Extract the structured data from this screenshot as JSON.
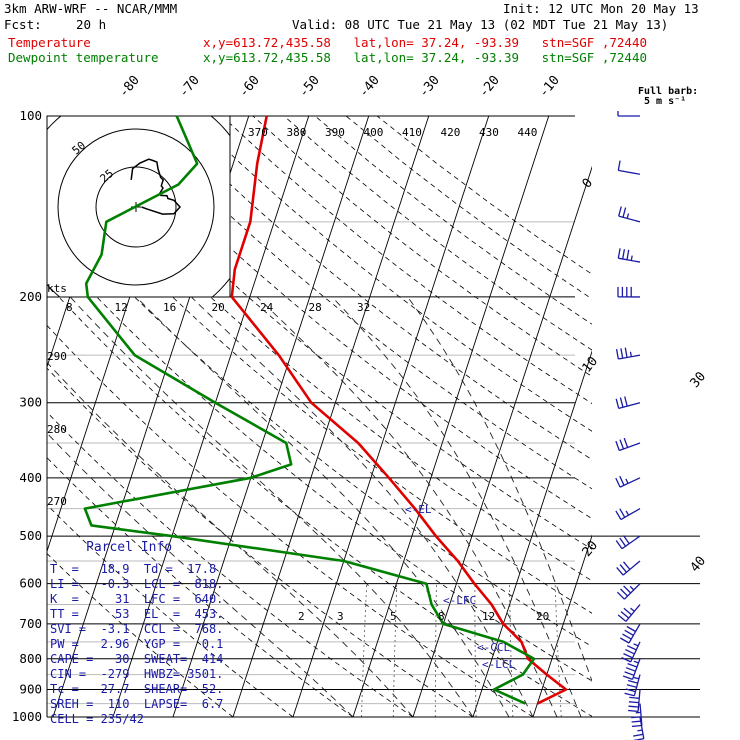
{
  "header": {
    "model": "3km ARW-WRF -- NCAR/MMM",
    "init": "Init: 12 UTC Mon 20 May 13",
    "fcst_label": "Fcst:",
    "fcst_value": "20 h",
    "valid": "Valid: 08 UTC Tue 21 May 13 (02 MDT Tue 21 May 13)"
  },
  "legend": [
    {
      "name": "Temperature",
      "info": "x,y=613.72,435.58   lat,lon= 37.24, -93.39   stn=SGF ,72440",
      "color": "#e00000"
    },
    {
      "name": "Dewpoint temperature",
      "info": "x,y=613.72,435.58   lat,lon= 37.24, -93.39   stn=SGF ,72440",
      "color": "#008000"
    }
  ],
  "wind_barb_label": [
    "Full barb:",
    "5 m s⁻¹"
  ],
  "hodograph": {
    "units": "kts",
    "ring_labels": [
      "50",
      "25"
    ],
    "theta_labels": [
      "370",
      "380",
      "390",
      "400",
      "410",
      "420",
      "430",
      "440"
    ],
    "x_ticks": [
      "8",
      "12",
      "16",
      "20",
      "24",
      "28",
      "32"
    ]
  },
  "theta_left_labels": [
    "290",
    "280",
    "270"
  ],
  "mixing_ratio_labels": [
    "2",
    "3",
    "5",
    "8",
    "12",
    "20"
  ],
  "parcel_markers": [
    "EL",
    "LFC",
    "CCL",
    "LCL"
  ],
  "parcel_info": {
    "title": "Parcel Info",
    "rows": [
      "T  =   18.9  Td =  17.8",
      "LI =   -0.3  LCL =  818.",
      "K  =     31  LFC =  640.",
      "TT =     53  EL  =  453.",
      "SVI =  -3.1  CCL =  768.",
      "PW =   2.96  YGP =   0.1",
      "CAPE =   30  SWEAT=  414",
      "CIN =  -279  HWBZ= 3501.",
      "Tc =   27.7  SHEAR=  52.",
      "SREH =  110  LAPSE=  6.7",
      "CELL = 235/42"
    ]
  },
  "chart_data": {
    "type": "line",
    "title": "",
    "ylabel": "",
    "xlabel": "",
    "y_scale": "log-pressure",
    "pressure_ticks": [
      100,
      200,
      300,
      400,
      500,
      600,
      700,
      800,
      900,
      1000
    ],
    "isotherm_labels": [
      -80,
      -70,
      -60,
      -50,
      -40,
      -30,
      -20,
      -10,
      0,
      10,
      20,
      30,
      40
    ],
    "series": [
      {
        "name": "Temperature",
        "color": "#e00000",
        "points": [
          [
            100,
            -57
          ],
          [
            120,
            -56
          ],
          [
            150,
            -54
          ],
          [
            180,
            -54
          ],
          [
            200,
            -53
          ],
          [
            250,
            -42
          ],
          [
            300,
            -34
          ],
          [
            350,
            -24
          ],
          [
            400,
            -17
          ],
          [
            450,
            -11
          ],
          [
            500,
            -6
          ],
          [
            550,
            -1
          ],
          [
            600,
            3
          ],
          [
            650,
            7
          ],
          [
            700,
            10
          ],
          [
            750,
            14
          ],
          [
            800,
            16
          ],
          [
            850,
            20
          ],
          [
            900,
            24
          ],
          [
            950,
            20
          ]
        ]
      },
      {
        "name": "Dewpoint temperature",
        "color": "#008000",
        "points": [
          [
            100,
            -72
          ],
          [
            120,
            -66
          ],
          [
            130,
            -68
          ],
          [
            150,
            -78
          ],
          [
            170,
            -77
          ],
          [
            190,
            -78
          ],
          [
            200,
            -77
          ],
          [
            250,
            -66
          ],
          [
            300,
            -50
          ],
          [
            350,
            -36
          ],
          [
            380,
            -34
          ],
          [
            400,
            -40
          ],
          [
            450,
            -66
          ],
          [
            480,
            -64
          ],
          [
            500,
            -50
          ],
          [
            550,
            -20
          ],
          [
            600,
            -5
          ],
          [
            650,
            -3
          ],
          [
            700,
            0
          ],
          [
            750,
            11
          ],
          [
            800,
            17
          ],
          [
            850,
            16
          ],
          [
            900,
            12
          ],
          [
            950,
            18
          ]
        ]
      }
    ],
    "wind_profile": [
      {
        "p": 100,
        "dir": 270,
        "kts": 5
      },
      {
        "p": 125,
        "dir": 280,
        "kts": 10
      },
      {
        "p": 150,
        "dir": 285,
        "kts": 25
      },
      {
        "p": 175,
        "dir": 280,
        "kts": 35
      },
      {
        "p": 200,
        "dir": 270,
        "kts": 40
      },
      {
        "p": 250,
        "dir": 260,
        "kts": 35
      },
      {
        "p": 300,
        "dir": 255,
        "kts": 30
      },
      {
        "p": 350,
        "dir": 250,
        "kts": 30
      },
      {
        "p": 400,
        "dir": 245,
        "kts": 25
      },
      {
        "p": 450,
        "dir": 240,
        "kts": 25
      },
      {
        "p": 500,
        "dir": 235,
        "kts": 30
      },
      {
        "p": 550,
        "dir": 230,
        "kts": 30
      },
      {
        "p": 600,
        "dir": 225,
        "kts": 35
      },
      {
        "p": 650,
        "dir": 220,
        "kts": 35
      },
      {
        "p": 700,
        "dir": 210,
        "kts": 40
      },
      {
        "p": 750,
        "dir": 205,
        "kts": 45
      },
      {
        "p": 800,
        "dir": 200,
        "kts": 45
      },
      {
        "p": 850,
        "dir": 195,
        "kts": 45
      },
      {
        "p": 900,
        "dir": 185,
        "kts": 40
      },
      {
        "p": 950,
        "dir": 175,
        "kts": 35
      },
      {
        "p": 1000,
        "dir": 170,
        "kts": 25
      }
    ]
  }
}
